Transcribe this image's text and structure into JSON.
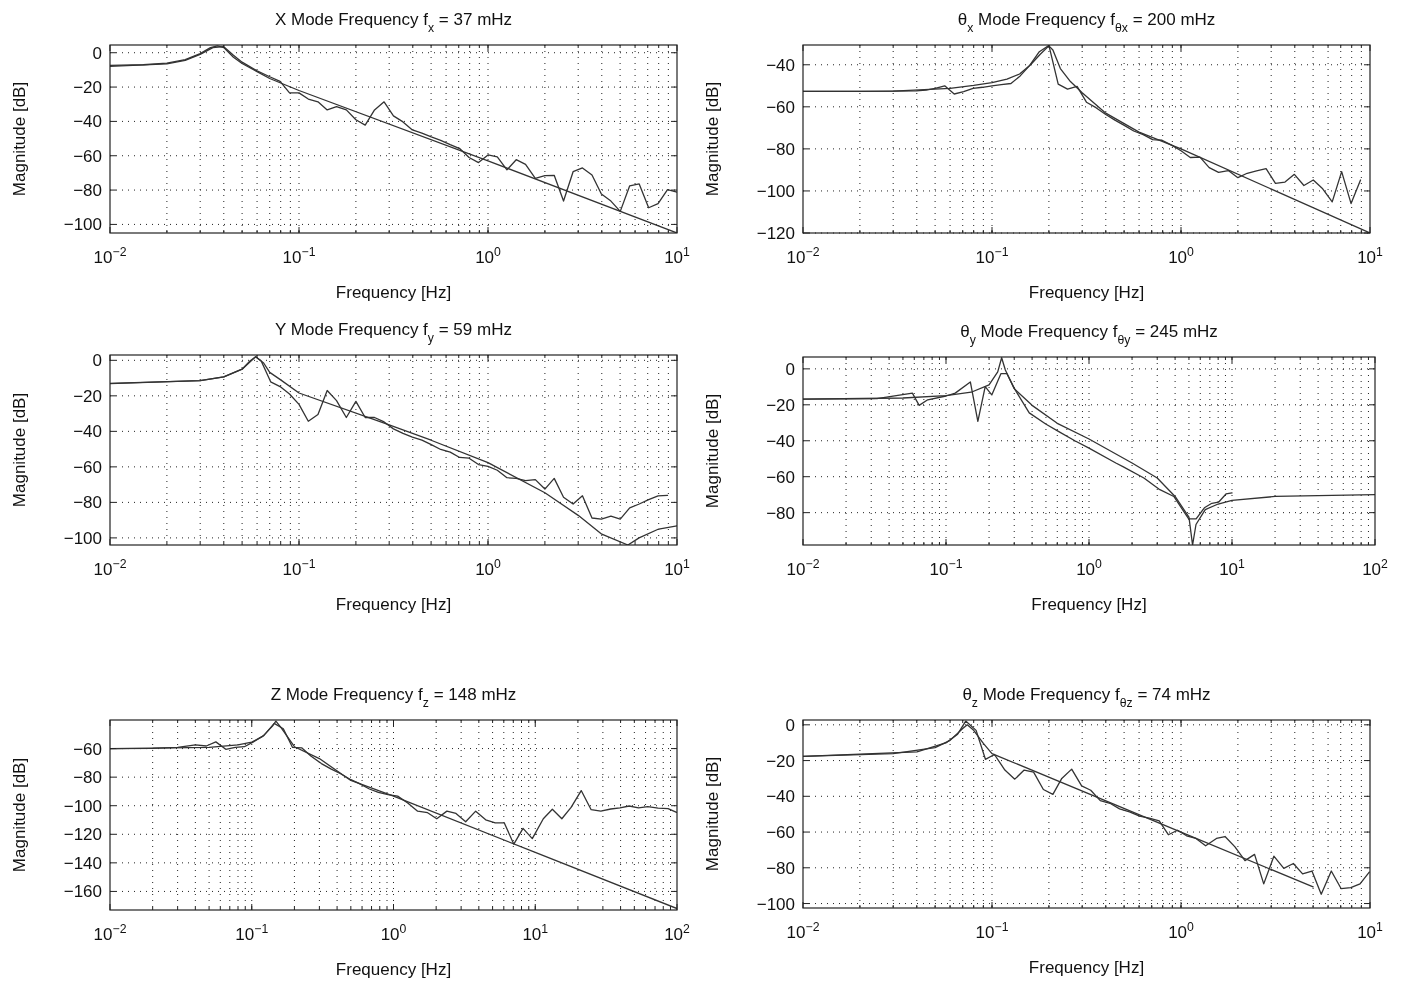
{
  "chart_data": [
    {
      "type": "line",
      "title": "X Mode Frequency f$_{x}$ = 37 mHz",
      "xlabel": "Frequency [Hz]",
      "ylabel": "Magnitude [dB]",
      "log": "x",
      "grid": true,
      "xlim": [
        0.01,
        10
      ],
      "ylim": [
        -105,
        4.5
      ],
      "xticks": [
        {
          "value": 0.01,
          "label": "10$^{−2}$"
        },
        {
          "value": 0.1,
          "label": "10$^{−1}$"
        },
        {
          "value": 1,
          "label": "10$^{0}$"
        },
        {
          "value": 10,
          "label": "10$^{1}$"
        }
      ],
      "yticks": [
        {
          "value": 0,
          "label": "0"
        },
        {
          "value": -20,
          "label": "−20"
        },
        {
          "value": -40,
          "label": "−40"
        },
        {
          "value": -60,
          "label": "−60"
        },
        {
          "value": -80,
          "label": "−80"
        },
        {
          "value": -100,
          "label": "−100"
        }
      ],
      "series": [
        {
          "color": "#333333",
          "x": [
            0.01,
            0.02,
            0.025,
            0.03,
            0.035,
            0.04,
            0.045,
            0.05,
            0.06,
            0.07,
            0.0794,
            0.0891,
            0.1,
            0.112,
            0.126,
            0.141,
            0.158,
            0.178,
            0.2,
            0.224,
            0.251,
            0.282,
            0.316,
            0.355,
            0.398,
            0.447,
            0.501,
            0.562,
            0.631,
            0.708,
            0.794,
            0.891,
            1,
            1.12,
            1.26,
            1.41,
            1.58,
            1.78,
            2,
            2.24,
            2.51,
            2.82,
            3.16,
            3.55,
            3.98,
            4.47,
            5.01,
            5.62,
            6.31,
            7.08,
            7.94,
            8.91,
            10
          ],
          "values": [
            -8,
            -6.5,
            -4.5,
            -1,
            3,
            3.5,
            -1.5,
            -5.5,
            -10.5,
            -14,
            -16.7,
            -23.4,
            -23.4,
            -27,
            -28.6,
            -33.3,
            -31.4,
            -33.3,
            -39,
            -42.2,
            -33.3,
            -28.6,
            -36.8,
            -40.3,
            -45,
            -46.8,
            -49,
            -51,
            -53.5,
            -55.8,
            -61,
            -64,
            -59.5,
            -60.6,
            -68.2,
            -62.3,
            -65,
            -73.2,
            -71.6,
            -71.4,
            -86.4,
            -69.3,
            -67.1,
            -71.2,
            -82.3,
            -86.4,
            -92.4,
            -77.5,
            -76.4,
            -90.3,
            -87.9,
            -79.7,
            -81.2
          ]
        },
        {
          "color": "#333333",
          "x": [
            0.01,
            0.015,
            0.02,
            0.025,
            0.03,
            0.034,
            0.037,
            0.04,
            0.045,
            0.05,
            0.06,
            0.07,
            0.1,
            1,
            10
          ],
          "values": [
            -7.4,
            -7,
            -6,
            -4,
            -0.5,
            3,
            4,
            3,
            -2.6,
            -6.3,
            -11,
            -15,
            -22,
            -63,
            -105
          ]
        }
      ]
    },
    {
      "type": "line",
      "title": "θ$_{x}$ Mode Frequency f$_{θx}$ = 200 mHz",
      "xlabel": "Frequency [Hz]",
      "ylabel": "Magnitude [dB]",
      "log": "x",
      "grid": true,
      "xlim": [
        0.01,
        10
      ],
      "ylim": [
        -120,
        -30.6
      ],
      "xticks": [
        {
          "value": 0.01,
          "label": "10$^{−2}$"
        },
        {
          "value": 0.1,
          "label": "10$^{−1}$"
        },
        {
          "value": 1,
          "label": "10$^{0}$"
        },
        {
          "value": 10,
          "label": "10$^{1}$"
        }
      ],
      "yticks": [
        {
          "value": -40,
          "label": "−40"
        },
        {
          "value": -60,
          "label": "−60"
        },
        {
          "value": -80,
          "label": "−80"
        },
        {
          "value": -100,
          "label": "−100"
        },
        {
          "value": -120,
          "label": "−120"
        }
      ],
      "series": [
        {
          "color": "#333333",
          "x": [
            0.01,
            0.02,
            0.03,
            0.0398,
            0.0447,
            0.0501,
            0.0562,
            0.0631,
            0.0708,
            0.0794,
            0.0891,
            0.1,
            0.112,
            0.126,
            0.141,
            0.158,
            0.178,
            0.2,
            0.224,
            0.251,
            0.282,
            0.316,
            0.355,
            0.398,
            0.447,
            0.501,
            0.562,
            0.631,
            0.708,
            0.794,
            0.891,
            1,
            1.12,
            1.26,
            1.41,
            1.58,
            1.78,
            2,
            2.24,
            2.51,
            2.82,
            3.16,
            3.55,
            3.98,
            4.47,
            5.01,
            5.62,
            6.31,
            7.08,
            7.94,
            8.91
          ],
          "values": [
            -52.7,
            -52.7,
            -52.5,
            -52.4,
            -52.1,
            -51.2,
            -50,
            -53.9,
            -52.8,
            -51.2,
            -50.7,
            -50,
            -49.4,
            -48.9,
            -45.3,
            -40.4,
            -33.8,
            -30.8,
            -49.2,
            -51.6,
            -50.3,
            -57.8,
            -60.4,
            -63.5,
            -66.3,
            -68.8,
            -71.5,
            -73.2,
            -75.6,
            -75.9,
            -78.2,
            -80.9,
            -84.1,
            -83.9,
            -88.9,
            -91.2,
            -90.3,
            -93.7,
            -91.6,
            -90.5,
            -89.4,
            -96.4,
            -95.8,
            -92.1,
            -97.4,
            -94.8,
            -99,
            -105.2,
            -90.8,
            -106,
            -94.8
          ]
        },
        {
          "color": "#333333",
          "x": [
            0.01,
            0.03,
            0.06,
            0.08,
            0.1,
            0.12,
            0.14,
            0.16,
            0.18,
            0.2,
            0.21,
            0.23,
            0.26,
            0.3,
            0.4,
            0.6,
            1,
            10
          ],
          "values": [
            -52.7,
            -52.5,
            -51.2,
            -49.8,
            -48.5,
            -46.8,
            -44.4,
            -40,
            -35,
            -31,
            -33,
            -41.8,
            -48,
            -53.3,
            -63,
            -72,
            -80,
            -120
          ]
        }
      ]
    },
    {
      "type": "line",
      "title": "Y Mode Frequency f$_{y}$ = 59 mHz",
      "xlabel": "Frequency [Hz]",
      "ylabel": "Magnitude [dB]",
      "log": "x",
      "grid": true,
      "xlim": [
        0.01,
        10
      ],
      "ylim": [
        -104,
        3
      ],
      "xticks": [
        {
          "value": 0.01,
          "label": "10$^{−2}$"
        },
        {
          "value": 0.1,
          "label": "10$^{−1}$"
        },
        {
          "value": 1,
          "label": "10$^{0}$"
        },
        {
          "value": 10,
          "label": "10$^{1}$"
        }
      ],
      "yticks": [
        {
          "value": 0,
          "label": "0"
        },
        {
          "value": -20,
          "label": "−20"
        },
        {
          "value": -40,
          "label": "−40"
        },
        {
          "value": -60,
          "label": "−60"
        },
        {
          "value": -80,
          "label": "−80"
        },
        {
          "value": -100,
          "label": "−100"
        }
      ],
      "series": [
        {
          "color": "#333333",
          "x": [
            0.01,
            0.03,
            0.04,
            0.05,
            0.059,
            0.0631,
            0.0708,
            0.0794,
            0.0891,
            0.1,
            0.112,
            0.126,
            0.141,
            0.158,
            0.178,
            0.2,
            0.224,
            0.251,
            0.282,
            0.316,
            0.355,
            0.398,
            0.447,
            0.501,
            0.562,
            0.631,
            0.708,
            0.794,
            0.891,
            1,
            1.12,
            1.26,
            1.41,
            1.58,
            1.78,
            2,
            2.24,
            2.51,
            2.82,
            3.16,
            3.55,
            3.98,
            4.47,
            5.01,
            5.62,
            6.31,
            7.08,
            7.94,
            8.91
          ],
          "values": [
            -13,
            -11.4,
            -9.3,
            -5,
            2,
            -0.4,
            -12.1,
            -14.8,
            -19,
            -24.8,
            -34.3,
            -30.5,
            -17,
            -22.7,
            -32.2,
            -23.1,
            -32.2,
            -32.2,
            -34.7,
            -38.6,
            -41.1,
            -43.2,
            -44.9,
            -47.5,
            -50.2,
            -51.7,
            -54.7,
            -55.1,
            -58.7,
            -59.7,
            -61.9,
            -66.1,
            -66.5,
            -67.8,
            -67.2,
            -72.5,
            -66.5,
            -77.1,
            -80.9,
            -76.3,
            -88.8,
            -89.4,
            -87.7,
            -89.4,
            -83.1,
            -80.9,
            -78.4,
            -76.3,
            -76.1
          ]
        },
        {
          "color": "#333333",
          "x": [
            0.01,
            0.03,
            0.04,
            0.05,
            0.055,
            0.059,
            0.065,
            0.07,
            0.08,
            0.1,
            0.3,
            0.5,
            1,
            2,
            3,
            4,
            5.5,
            6.3,
            8,
            10
          ],
          "values": [
            -13.1,
            -11.4,
            -9.3,
            -5,
            -0.4,
            2,
            -1.5,
            -6.8,
            -11,
            -18.4,
            -36.4,
            -45,
            -57.6,
            -74.6,
            -87.3,
            -97.9,
            -104,
            -100,
            -95,
            -93.2
          ]
        }
      ]
    },
    {
      "type": "line",
      "title": "θ$_{y}$ Mode Frequency f$_{θy}$ = 245 mHz",
      "xlabel": "Frequency [Hz]",
      "ylabel": "Magnitude [dB]",
      "log": "x",
      "grid": true,
      "xlim": [
        0.01,
        100
      ],
      "ylim": [
        -98,
        6.6
      ],
      "xticks": [
        {
          "value": 0.01,
          "label": "10$^{−2}$"
        },
        {
          "value": 0.1,
          "label": "10$^{−1}$"
        },
        {
          "value": 1,
          "label": "10$^{0}$"
        },
        {
          "value": 10,
          "label": "10$^{1}$"
        },
        {
          "value": 100,
          "label": "10$^{2}$"
        }
      ],
      "yticks": [
        {
          "value": 0,
          "label": "0"
        },
        {
          "value": -20,
          "label": "−20"
        },
        {
          "value": -40,
          "label": "−40"
        },
        {
          "value": -60,
          "label": "−60"
        },
        {
          "value": -80,
          "label": "−80"
        }
      ],
      "series": [
        {
          "color": "#333333",
          "x": [
            0.01,
            0.0329,
            0.0582,
            0.0649,
            0.0745,
            0.1,
            0.116,
            0.148,
            0.167,
            0.188,
            0.209,
            0.242,
            0.267,
            0.301,
            0.382,
            0.498,
            0.611,
            0.796,
            1,
            1.54,
            1.74,
            2.42,
            3.08,
            3.92,
            4.98,
            5.61,
            6.41,
            7.23,
            8.05,
            9.08,
            10
          ],
          "values": [
            -16.8,
            -16.6,
            -13.5,
            -20.3,
            -17.2,
            -15.1,
            -13.5,
            -7.3,
            -29.2,
            -9.9,
            -14.5,
            -2.7,
            -2.7,
            -11,
            -24.5,
            -30.7,
            -34.8,
            -40,
            -44.1,
            -52.4,
            -54.5,
            -60.7,
            -66.9,
            -71,
            -83.5,
            -83.5,
            -77.3,
            -74.8,
            -74.2,
            -69.6,
            -69
          ]
        },
        {
          "color": "#333333",
          "x": [
            0.01,
            0.05,
            0.1,
            0.15,
            0.2,
            0.23,
            0.245,
            0.26,
            0.3,
            0.4,
            0.6,
            1,
            2,
            3,
            4,
            5,
            5.3,
            5.6,
            6.5,
            8,
            10,
            20,
            100
          ],
          "values": [
            -16.8,
            -16.2,
            -14.9,
            -13,
            -8.9,
            -1.7,
            6.2,
            -0.6,
            -11,
            -20.3,
            -30.3,
            -39,
            -52.4,
            -60.7,
            -71,
            -82.5,
            -98,
            -86.6,
            -78.3,
            -75.2,
            -73.2,
            -71,
            -70
          ]
        }
      ]
    },
    {
      "type": "line",
      "title": "Z Mode Frequency f$_{z}$ = 148 mHz",
      "xlabel": "Frequency [Hz]",
      "ylabel": "Magnitude [dB]",
      "log": "x",
      "grid": true,
      "xlim": [
        0.01,
        100
      ],
      "ylim": [
        -173,
        -40
      ],
      "xticks": [
        {
          "value": 0.01,
          "label": "10$^{−2}$"
        },
        {
          "value": 0.1,
          "label": "10$^{−1}$"
        },
        {
          "value": 1,
          "label": "10$^{0}$"
        },
        {
          "value": 10,
          "label": "10$^{1}$"
        },
        {
          "value": 100,
          "label": "10$^{2}$"
        }
      ],
      "yticks": [
        {
          "value": -60,
          "label": "−60"
        },
        {
          "value": -80,
          "label": "−80"
        },
        {
          "value": -100,
          "label": "−100"
        },
        {
          "value": -120,
          "label": "−120"
        },
        {
          "value": -140,
          "label": "−140"
        },
        {
          "value": -160,
          "label": "−160"
        }
      ],
      "series": [
        {
          "color": "#333333",
          "x": [
            0.01,
            0.02,
            0.03,
            0.0401,
            0.0478,
            0.0558,
            0.0656,
            0.0766,
            0.0887,
            0.102,
            0.122,
            0.144,
            0.167,
            0.194,
            0.225,
            0.261,
            0.31,
            0.364,
            0.424,
            0.5,
            0.571,
            0.676,
            0.782,
            0.914,
            1.07,
            1.26,
            1.48,
            1.74,
            2.02,
            2.38,
            2.76,
            3.23,
            3.8,
            4.47,
            5.22,
            6.04,
            7.06,
            8.2,
            9.53,
            11.4,
            13.2,
            15.4,
            17.9,
            21.1,
            24.8,
            29,
            34.1,
            39.6,
            46,
            53.5,
            62.2,
            73.6,
            86.5,
            99.3
          ],
          "values": [
            -60,
            -59.8,
            -59.2,
            -57.4,
            -58.2,
            -55.3,
            -60.5,
            -59.2,
            -58.7,
            -55.5,
            -50.8,
            -42.4,
            -46.1,
            -59.2,
            -59.5,
            -65.2,
            -70.5,
            -74.4,
            -77.6,
            -81.8,
            -84.4,
            -88.3,
            -90.7,
            -92.3,
            -93.3,
            -98.1,
            -103.8,
            -104.9,
            -109.1,
            -103.8,
            -105.4,
            -111.2,
            -103.8,
            -109.9,
            -112,
            -112,
            -126.9,
            -115.9,
            -123,
            -109.1,
            -102.5,
            -109.1,
            -101.2,
            -89.4,
            -102.8,
            -103.8,
            -102.3,
            -101.5,
            -100.2,
            -101.5,
            -100.7,
            -101.7,
            -102,
            -104.6
          ]
        },
        {
          "color": "#333333",
          "x": [
            0.01,
            0.05,
            0.08,
            0.1,
            0.12,
            0.14,
            0.148,
            0.16,
            0.2,
            0.3,
            0.5,
            1,
            10,
            100
          ],
          "values": [
            -60,
            -59.2,
            -57.4,
            -55.5,
            -51.3,
            -44.3,
            -40.8,
            -45,
            -58.7,
            -67,
            -82.3,
            -93.3,
            -132.7,
            -172
          ]
        }
      ]
    },
    {
      "type": "line",
      "title": "θ$_{z}$ Mode Frequency f$_{θz}$ = 74 mHz",
      "xlabel": "Frequency [Hz]",
      "ylabel": "Magnitude [dB]",
      "log": "x",
      "grid": true,
      "xlim": [
        0.01,
        10
      ],
      "ylim": [
        -102.5,
        2.7
      ],
      "xticks": [
        {
          "value": 0.01,
          "label": "10$^{−2}$"
        },
        {
          "value": 0.1,
          "label": "10$^{−1}$"
        },
        {
          "value": 1,
          "label": "10$^{0}$"
        },
        {
          "value": 10,
          "label": "10$^{1}$"
        }
      ],
      "yticks": [
        {
          "value": 0,
          "label": "0"
        },
        {
          "value": -20,
          "label": "−20"
        },
        {
          "value": -40,
          "label": "−40"
        },
        {
          "value": -60,
          "label": "−60"
        },
        {
          "value": -80,
          "label": "−80"
        },
        {
          "value": -100,
          "label": "−100"
        }
      ],
      "series": [
        {
          "color": "#333333",
          "x": [
            0.01,
            0.0401,
            0.0575,
            0.0658,
            0.0726,
            0.0824,
            0.0923,
            0.103,
            0.117,
            0.132,
            0.148,
            0.166,
            0.187,
            0.21,
            0.234,
            0.264,
            0.298,
            0.333,
            0.374,
            0.421,
            0.473,
            0.534,
            0.604,
            0.679,
            0.767,
            0.857,
            0.959,
            1.07,
            1.2,
            1.35,
            1.54,
            1.71,
            1.93,
            2.18,
            2.45,
            2.74,
            3.1,
            3.5,
            3.93,
            4.4,
            4.93,
            5.52,
            6.24,
            7.04,
            7.91,
            8.86,
            9.91
          ],
          "values": [
            -17.6,
            -15.1,
            -9.9,
            -5.2,
            2.1,
            -3.1,
            -19.3,
            -16.6,
            -25.3,
            -30.4,
            -25.3,
            -26.5,
            -36.2,
            -38.9,
            -30,
            -24.8,
            -34.2,
            -36.6,
            -42.4,
            -43.9,
            -47,
            -48.7,
            -51.1,
            -52.2,
            -53.8,
            -61.5,
            -59,
            -62.1,
            -63.6,
            -67.7,
            -63.6,
            -62.5,
            -68.3,
            -76,
            -72.5,
            -89,
            -73.5,
            -80.3,
            -77.6,
            -83.4,
            -81.8,
            -94.8,
            -81.8,
            -91.7,
            -91.1,
            -89,
            -82.4
          ]
        },
        {
          "color": "#333333",
          "x": [
            0.01,
            0.03,
            0.05,
            0.06,
            0.07,
            0.074,
            0.08,
            0.09,
            0.1,
            1,
            5
          ],
          "values": [
            -17.6,
            -16.1,
            -12.8,
            -8.7,
            -2.1,
            0,
            -3.1,
            -10.4,
            -16.1,
            -60,
            -90.7
          ]
        }
      ]
    }
  ]
}
